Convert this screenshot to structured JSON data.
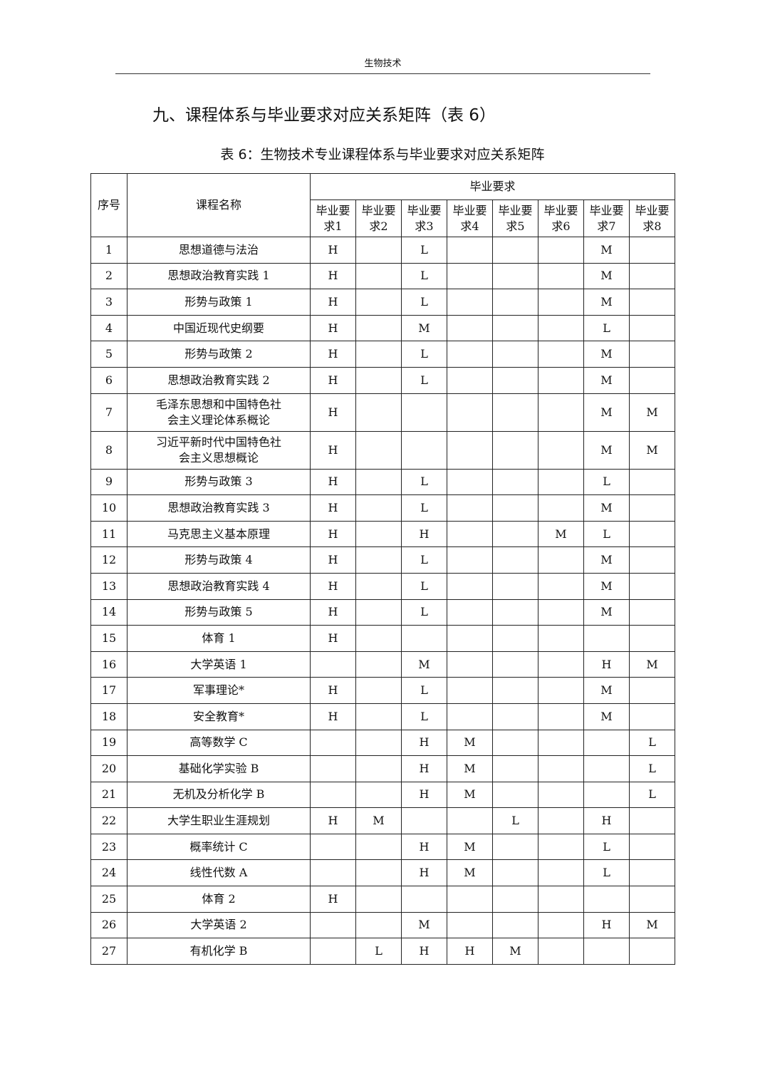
{
  "running_head": "生物技术",
  "section_title": "九、课程体系与毕业要求对应关系矩阵（表 6）",
  "table_caption": "表 6：生物技术专业课程体系与毕业要求对应关系矩阵",
  "headers": {
    "index": "序号",
    "course": "课程名称",
    "group": "毕业要求",
    "requirements": [
      "毕业要求1",
      "毕业要求2",
      "毕业要求3",
      "毕业要求4",
      "毕业要求5",
      "毕业要求6",
      "毕业要求7",
      "毕业要求8"
    ]
  },
  "rows": [
    {
      "no": "1",
      "course": "思想道德与法治",
      "cells": [
        "H",
        "",
        "L",
        "",
        "",
        "",
        "M",
        ""
      ]
    },
    {
      "no": "2",
      "course": "思想政治教育实践 1",
      "cells": [
        "H",
        "",
        "L",
        "",
        "",
        "",
        "M",
        ""
      ]
    },
    {
      "no": "3",
      "course": "形势与政策 1",
      "cells": [
        "H",
        "",
        "L",
        "",
        "",
        "",
        "M",
        ""
      ]
    },
    {
      "no": "4",
      "course": "中国近现代史纲要",
      "cells": [
        "H",
        "",
        "M",
        "",
        "",
        "",
        "L",
        ""
      ]
    },
    {
      "no": "5",
      "course": "形势与政策 2",
      "cells": [
        "H",
        "",
        "L",
        "",
        "",
        "",
        "M",
        ""
      ]
    },
    {
      "no": "6",
      "course": "思想政治教育实践 2",
      "cells": [
        "H",
        "",
        "L",
        "",
        "",
        "",
        "M",
        ""
      ]
    },
    {
      "no": "7",
      "course": "毛泽东思想和中国特色社会主义理论体系概论",
      "cells": [
        "H",
        "",
        "",
        "",
        "",
        "",
        "M",
        "M"
      ]
    },
    {
      "no": "8",
      "course": "习近平新时代中国特色社会主义思想概论",
      "cells": [
        "H",
        "",
        "",
        "",
        "",
        "",
        "M",
        "M"
      ]
    },
    {
      "no": "9",
      "course": "形势与政策 3",
      "cells": [
        "H",
        "",
        "L",
        "",
        "",
        "",
        "L",
        ""
      ]
    },
    {
      "no": "10",
      "course": "思想政治教育实践 3",
      "cells": [
        "H",
        "",
        "L",
        "",
        "",
        "",
        "M",
        ""
      ]
    },
    {
      "no": "11",
      "course": "马克思主义基本原理",
      "cells": [
        "H",
        "",
        "H",
        "",
        "",
        "M",
        "L",
        ""
      ]
    },
    {
      "no": "12",
      "course": "形势与政策 4",
      "cells": [
        "H",
        "",
        "L",
        "",
        "",
        "",
        "M",
        ""
      ]
    },
    {
      "no": "13",
      "course": "思想政治教育实践 4",
      "cells": [
        "H",
        "",
        "L",
        "",
        "",
        "",
        "M",
        ""
      ]
    },
    {
      "no": "14",
      "course": "形势与政策 5",
      "cells": [
        "H",
        "",
        "L",
        "",
        "",
        "",
        "M",
        ""
      ]
    },
    {
      "no": "15",
      "course": "体育 1",
      "cells": [
        "H",
        "",
        "",
        "",
        "",
        "",
        "",
        ""
      ]
    },
    {
      "no": "16",
      "course": "大学英语 1",
      "cells": [
        "",
        "",
        "M",
        "",
        "",
        "",
        "H",
        "M"
      ]
    },
    {
      "no": "17",
      "course": "军事理论*",
      "cells": [
        "H",
        "",
        "L",
        "",
        "",
        "",
        "M",
        ""
      ]
    },
    {
      "no": "18",
      "course": "安全教育*",
      "cells": [
        "H",
        "",
        "L",
        "",
        "",
        "",
        "M",
        ""
      ]
    },
    {
      "no": "19",
      "course": "高等数学 C",
      "cells": [
        "",
        "",
        "H",
        "M",
        "",
        "",
        "",
        "L"
      ]
    },
    {
      "no": "20",
      "course": "基础化学实验 B",
      "cells": [
        "",
        "",
        "H",
        "M",
        "",
        "",
        "",
        "L"
      ]
    },
    {
      "no": "21",
      "course": "无机及分析化学 B",
      "cells": [
        "",
        "",
        "H",
        "M",
        "",
        "",
        "",
        "L"
      ]
    },
    {
      "no": "22",
      "course": "大学生职业生涯规划",
      "cells": [
        "H",
        "M",
        "",
        "",
        "L",
        "",
        "H",
        ""
      ]
    },
    {
      "no": "23",
      "course": "概率统计 C",
      "cells": [
        "",
        "",
        "H",
        "M",
        "",
        "",
        "L",
        ""
      ]
    },
    {
      "no": "24",
      "course": "线性代数 A",
      "cells": [
        "",
        "",
        "H",
        "M",
        "",
        "",
        "L",
        ""
      ]
    },
    {
      "no": "25",
      "course": "体育 2",
      "cells": [
        "H",
        "",
        "",
        "",
        "",
        "",
        "",
        ""
      ]
    },
    {
      "no": "26",
      "course": "大学英语 2",
      "cells": [
        "",
        "",
        "M",
        "",
        "",
        "",
        "H",
        "M"
      ]
    },
    {
      "no": "27",
      "course": "有机化学 B",
      "cells": [
        "",
        "L",
        "H",
        "H",
        "M",
        "",
        "",
        ""
      ]
    }
  ]
}
